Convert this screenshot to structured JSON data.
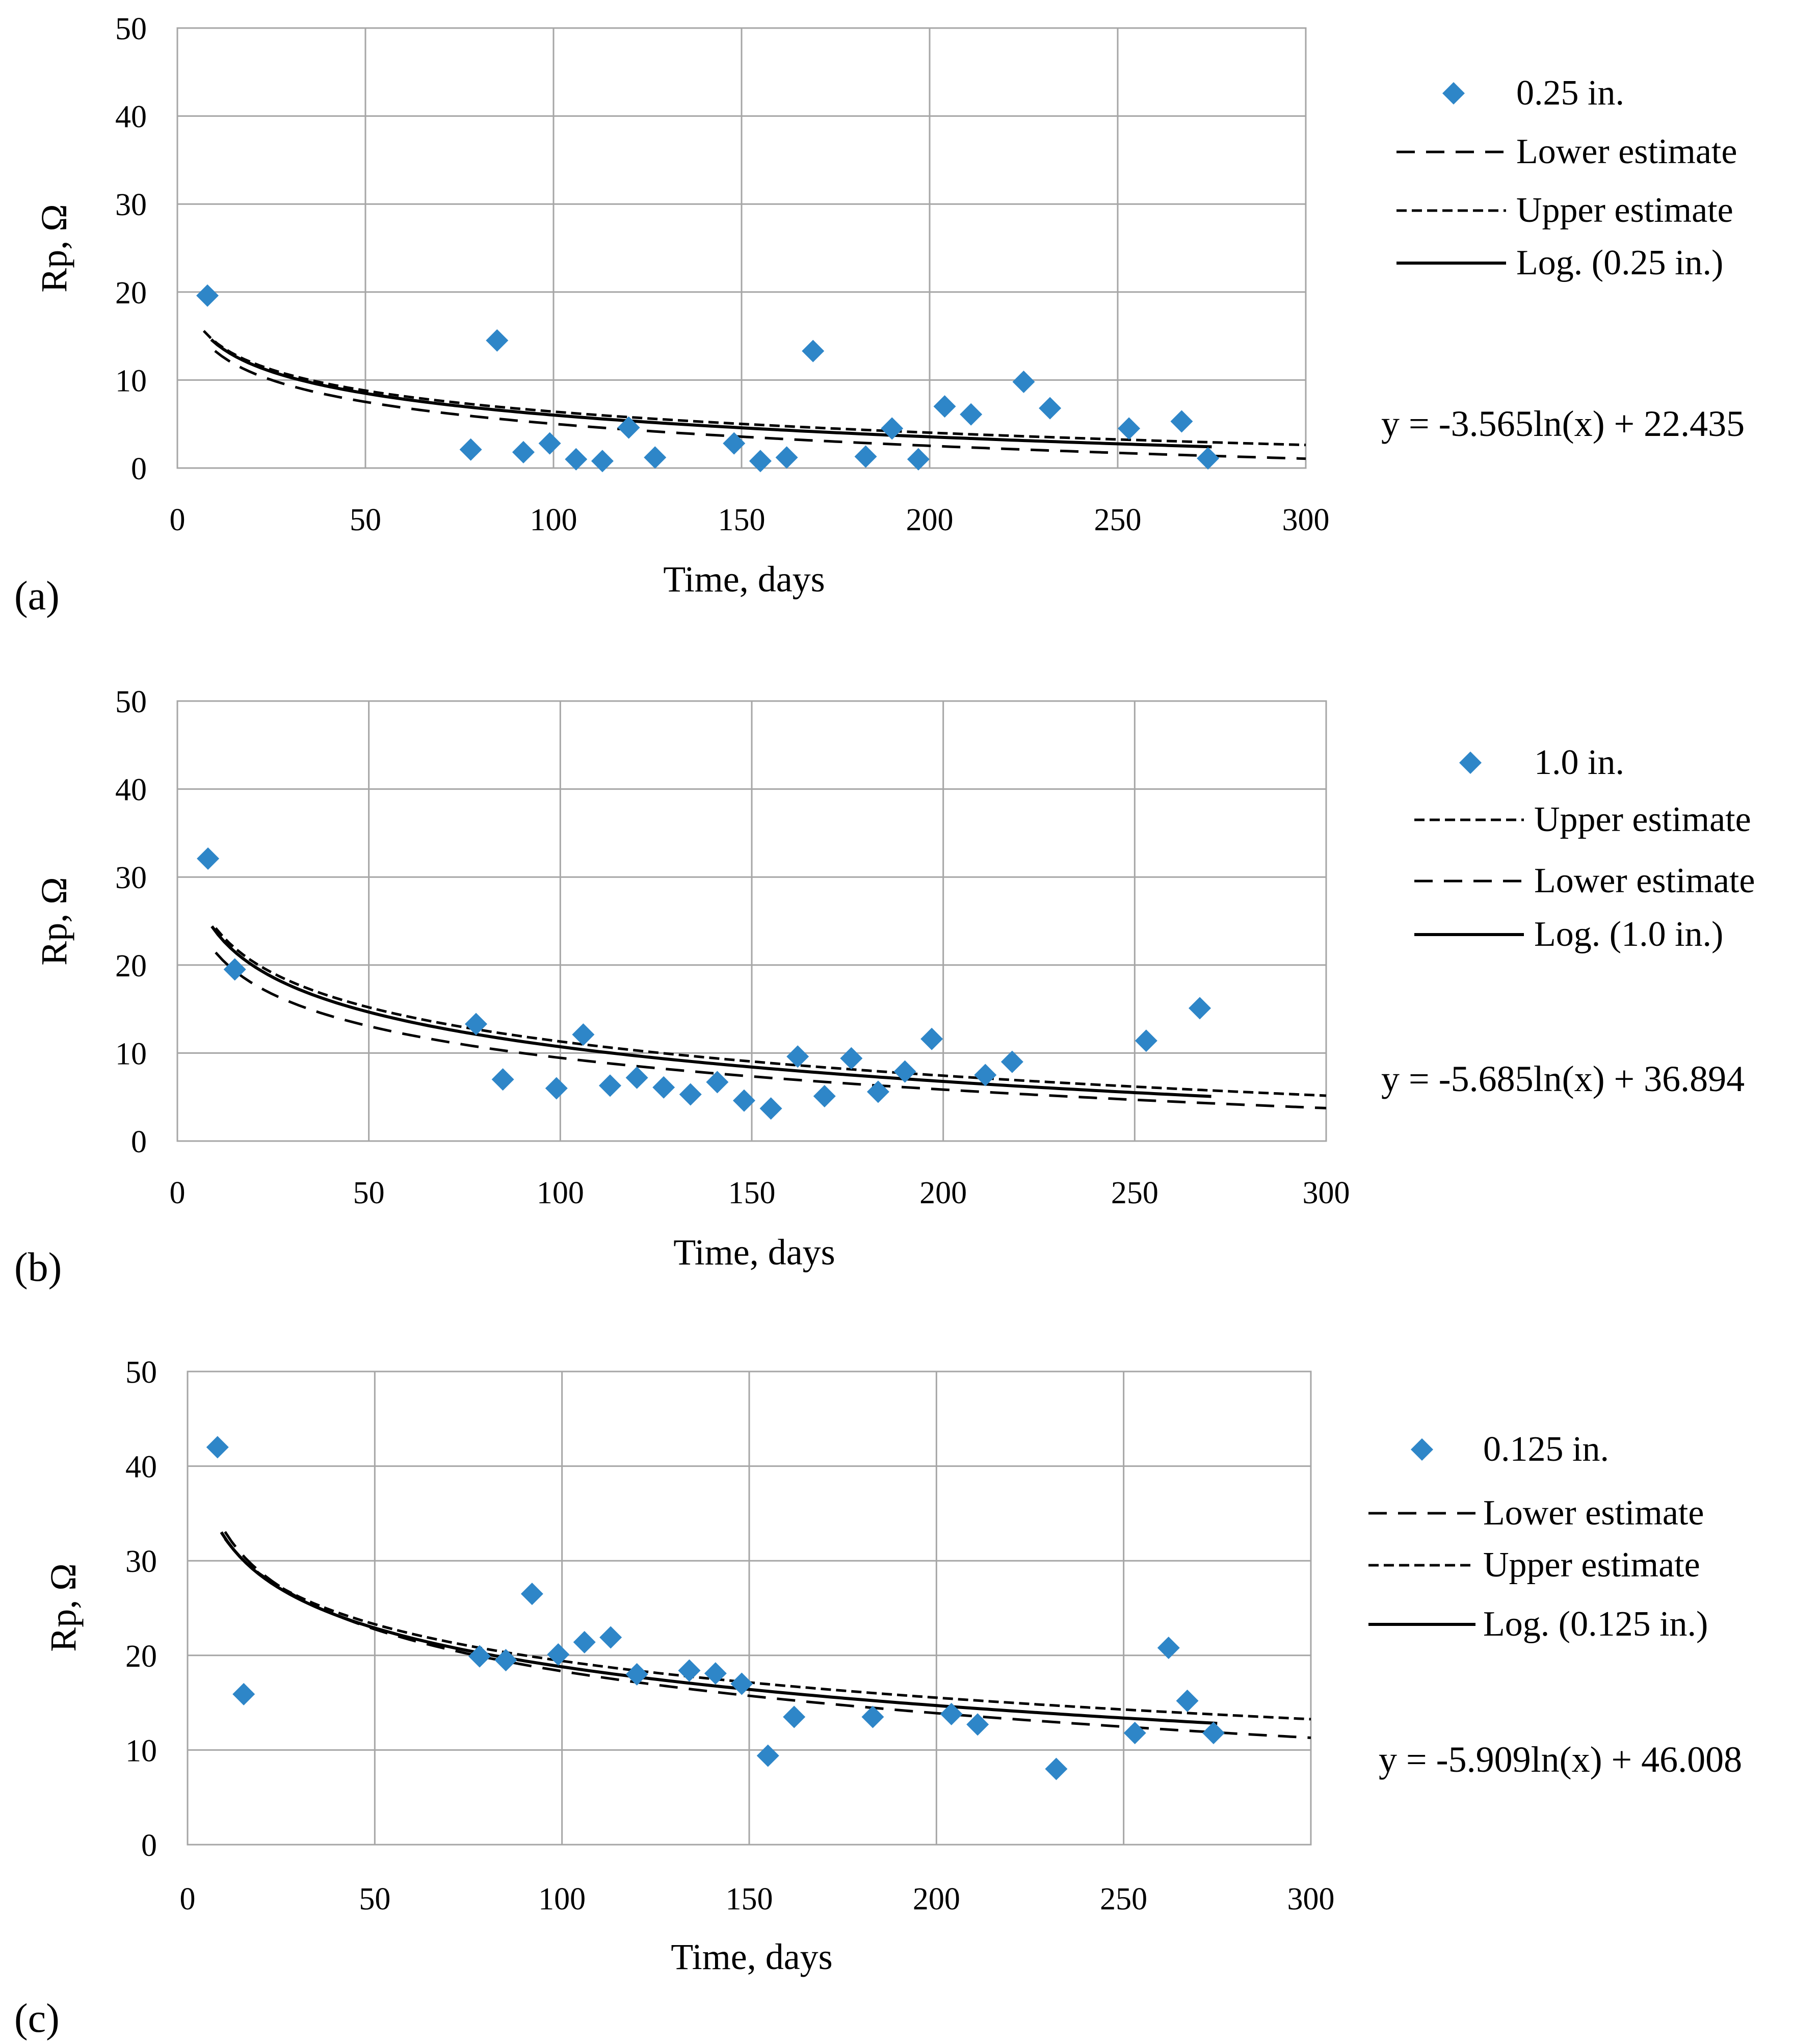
{
  "figure": {
    "background": "#ffffff",
    "marker_color": "#2e86c8",
    "grid_color": "#a6a6a6",
    "line_color": "#000000"
  },
  "chart_data": [
    {
      "type": "scatter",
      "panel_label": "(a)",
      "xlabel": "Time, days",
      "ylabel": "Rp, Ω",
      "xlim": [
        0,
        300
      ],
      "ylim": [
        0,
        50
      ],
      "xticks": [
        "0",
        "50",
        "100",
        "150",
        "200",
        "250",
        "300"
      ],
      "yticks": [
        "0",
        "10",
        "20",
        "30",
        "40",
        "50"
      ],
      "legend_position": "right",
      "equation": "y = -3.565ln(x) + 22.435",
      "series": [
        {
          "name": "0.25 in.",
          "kind": "points",
          "marker": "diamond",
          "x": [
            8,
            78,
            85,
            92,
            99,
            106,
            113,
            120,
            127,
            148,
            155,
            162,
            169,
            183,
            190,
            197,
            204,
            211,
            225,
            232,
            253,
            267,
            274
          ],
          "y": [
            19.6,
            2.1,
            14.5,
            1.8,
            2.8,
            1.0,
            0.8,
            4.6,
            1.2,
            2.8,
            0.8,
            1.2,
            13.3,
            1.3,
            4.5,
            1.0,
            7.0,
            6.1,
            9.8,
            6.8,
            4.5,
            5.3,
            1.1
          ]
        },
        {
          "name": "Lower estimate",
          "kind": "curve",
          "dash": "long",
          "a": -3.6,
          "b": 21.6,
          "x_range": [
            10,
            300
          ]
        },
        {
          "name": "Upper estimate",
          "kind": "curve",
          "dash": "short",
          "a": -3.45,
          "b": 22.3,
          "x_range": [
            7,
            300
          ]
        },
        {
          "name": "Log. (0.25 in.)",
          "kind": "curve",
          "dash": "solid",
          "a": -3.565,
          "b": 22.435,
          "x_range": [
            9,
            275
          ]
        }
      ],
      "legend_order": [
        0,
        1,
        2,
        3
      ]
    },
    {
      "type": "scatter",
      "panel_label": "(b)",
      "xlabel": "Time, days",
      "ylabel": "Rp, Ω",
      "xlim": [
        0,
        300
      ],
      "ylim": [
        0,
        50
      ],
      "xticks": [
        "0",
        "50",
        "100",
        "150",
        "200",
        "250",
        "300"
      ],
      "yticks": [
        "0",
        "10",
        "20",
        "30",
        "40",
        "50"
      ],
      "legend_position": "right",
      "equation": "y = -5.685ln(x) + 36.894",
      "series": [
        {
          "name": "1.0 in.",
          "kind": "points",
          "marker": "diamond",
          "x": [
            8,
            15,
            78,
            85,
            99,
            106,
            113,
            120,
            127,
            134,
            141,
            148,
            155,
            162,
            169,
            176,
            183,
            190,
            197,
            211,
            218,
            253,
            267
          ],
          "y": [
            32.1,
            19.5,
            13.3,
            7.0,
            6.0,
            12.1,
            6.3,
            7.2,
            6.1,
            5.3,
            6.7,
            4.6,
            3.7,
            9.6,
            5.1,
            9.4,
            5.6,
            7.9,
            11.6,
            7.5,
            9.0,
            11.4,
            15.1
          ]
        },
        {
          "name": "Upper estimate",
          "kind": "curve",
          "dash": "short",
          "a": -5.6,
          "b": 37.1,
          "x_range": [
            10,
            300
          ]
        },
        {
          "name": "Lower estimate",
          "kind": "curve",
          "dash": "long",
          "a": -5.2,
          "b": 33.4,
          "x_range": [
            10,
            300
          ]
        },
        {
          "name": "Log. (1.0 in.)",
          "kind": "curve",
          "dash": "solid",
          "a": -5.685,
          "b": 36.894,
          "x_range": [
            9,
            270
          ]
        }
      ],
      "legend_order": [
        0,
        1,
        2,
        3
      ]
    },
    {
      "type": "scatter",
      "panel_label": "(c)",
      "xlabel": "Time, days",
      "ylabel": "Rp, Ω",
      "xlim": [
        0,
        300
      ],
      "ylim": [
        0,
        50
      ],
      "xticks": [
        "0",
        "50",
        "100",
        "150",
        "200",
        "250",
        "300"
      ],
      "yticks": [
        "0",
        "10",
        "20",
        "30",
        "40",
        "50"
      ],
      "legend_position": "right",
      "equation": "y = -5.909ln(x) + 46.008",
      "series": [
        {
          "name": "0.125 in.",
          "kind": "points",
          "marker": "diamond",
          "x": [
            8,
            15,
            78,
            85,
            92,
            99,
            106,
            113,
            120,
            134,
            141,
            148,
            155,
            162,
            183,
            204,
            211,
            232,
            253,
            262,
            267,
            274
          ],
          "y": [
            42.0,
            15.9,
            19.9,
            19.5,
            26.5,
            20.1,
            21.4,
            21.9,
            18.0,
            18.4,
            18.1,
            17.0,
            9.4,
            13.5,
            13.5,
            13.8,
            12.7,
            8.0,
            11.8,
            20.8,
            15.2,
            11.8
          ]
        },
        {
          "name": "Lower estimate",
          "kind": "curve",
          "dash": "long",
          "a": -6.4,
          "b": 47.8,
          "x_range": [
            10,
            300
          ]
        },
        {
          "name": "Upper estimate",
          "kind": "curve",
          "dash": "short",
          "a": -5.6,
          "b": 45.2,
          "x_range": [
            10,
            300
          ]
        },
        {
          "name": "Log. (0.125 in.)",
          "kind": "curve",
          "dash": "solid",
          "a": -5.909,
          "b": 46.008,
          "x_range": [
            9,
            275
          ]
        }
      ],
      "legend_order": [
        0,
        1,
        2,
        3
      ]
    }
  ]
}
